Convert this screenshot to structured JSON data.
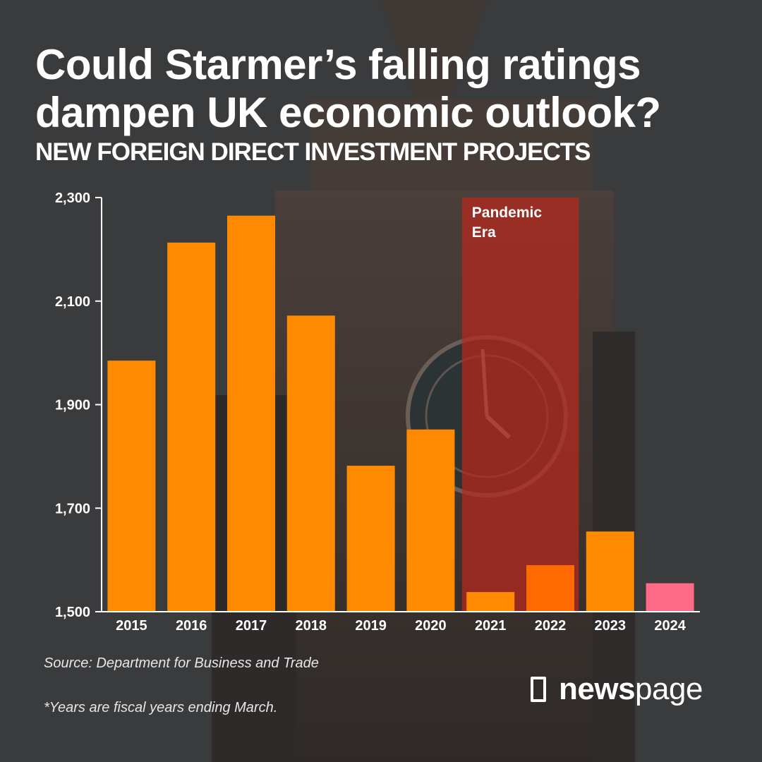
{
  "title_lines": [
    "Could Starmer’s falling ratings",
    "dampen UK economic outlook?"
  ],
  "subtitle": "NEW FOREIGN DIRECT INVESTMENT PROJECTS",
  "source": "Source: Department for Business and Trade",
  "footnote": "*Years are fiscal years ending March.",
  "brand": {
    "bold": "news",
    "regular": "page",
    "logo_icon": "newspage-logo-icon"
  },
  "colors": {
    "bar": "#ff8a00",
    "bar_2022": "#ff6a00",
    "bar_2024": "#ff6b86",
    "highlight": "#b8281c",
    "axis": "#ffffff",
    "text": "#ffffff",
    "background": "#3a3b3d"
  },
  "chart_data": {
    "type": "bar",
    "title": "NEW FOREIGN DIRECT INVESTMENT PROJECTS",
    "xlabel": "",
    "ylabel": "",
    "categories": [
      "2015",
      "2016",
      "2017",
      "2018",
      "2019",
      "2020",
      "2021",
      "2022",
      "2023",
      "2024"
    ],
    "values": [
      1985,
      2213,
      2265,
      2072,
      1782,
      1852,
      1538,
      1590,
      1655,
      1555
    ],
    "ylim": [
      1500,
      2300
    ],
    "yticks": [
      1500,
      1700,
      1900,
      2100,
      2300
    ],
    "ytick_labels": [
      "1,500",
      "1,700",
      "1,900",
      "2,100",
      "2,300"
    ],
    "grid": false,
    "annotation": {
      "label_lines": [
        "Pandemic",
        "Era"
      ],
      "from": "2021",
      "to": "2022"
    }
  }
}
